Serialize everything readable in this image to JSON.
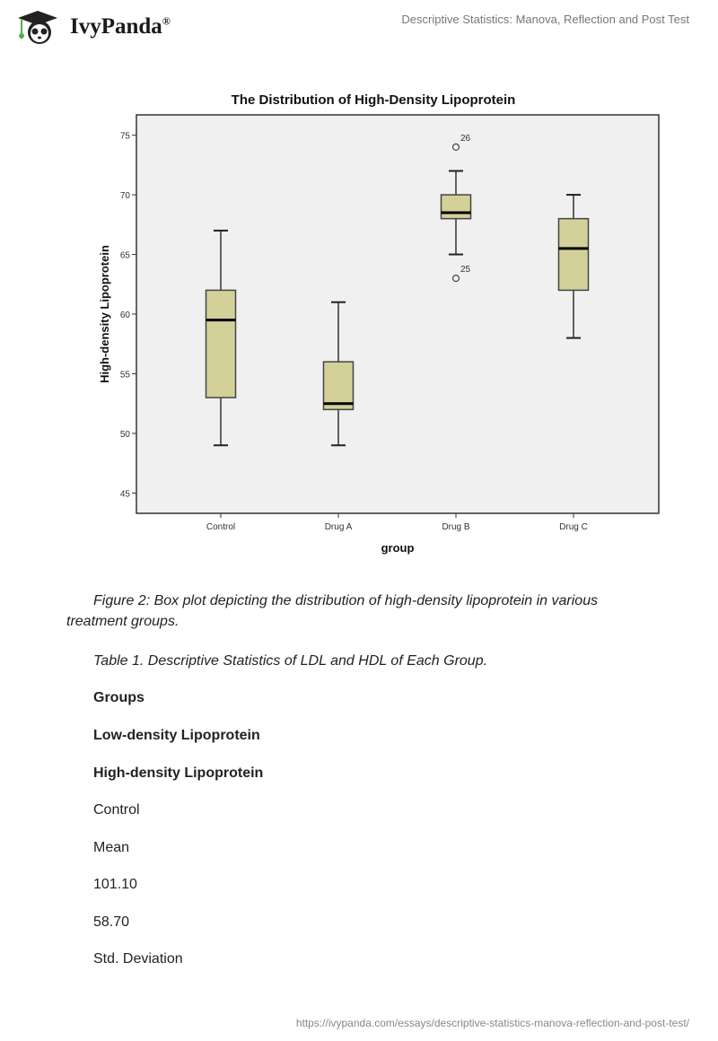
{
  "header": {
    "brand": "IvyPanda",
    "brand_mark": "®",
    "doc_title": "Descriptive Statistics: Manova, Reflection and Post Test"
  },
  "chart_data": {
    "type": "box",
    "title": "The Distribution of High-Density Lipoprotein",
    "xlabel": "group",
    "ylabel": "High-density Lipoprotein",
    "ylim": [
      43.3,
      76.7
    ],
    "yticks": [
      45,
      50,
      55,
      60,
      65,
      70,
      75
    ],
    "categories": [
      "Control",
      "Drug A",
      "Drug B",
      "Drug C"
    ],
    "boxes": [
      {
        "min": 49,
        "q1": 53,
        "median": 59.5,
        "q3": 62,
        "max": 67,
        "outliers": []
      },
      {
        "min": 49,
        "q1": 52,
        "median": 52.5,
        "q3": 56,
        "max": 61,
        "outliers": []
      },
      {
        "min": 65,
        "q1": 68,
        "median": 68.5,
        "q3": 70,
        "max": 72,
        "outliers": [
          {
            "value": 74,
            "label": "26"
          },
          {
            "value": 63,
            "label": "25"
          }
        ]
      },
      {
        "min": 58,
        "q1": 62,
        "median": 65.5,
        "q3": 68,
        "max": 70,
        "outliers": []
      }
    ],
    "box_color": "#d4d09a",
    "plot_bg": "#f0f0f0",
    "grid": false
  },
  "body": {
    "figure_caption_1": "Figure 2: Box plot depicting the distribution of high-density lipoprotein in various",
    "figure_caption_2": "treatment groups.",
    "table_caption": "Table 1. Descriptive Statistics of LDL and HDL of Each Group.",
    "lines": [
      "Groups",
      "Low-density Lipoprotein",
      "High-density Lipoprotein",
      "Control",
      "Mean",
      "101.10",
      "58.70",
      "Std. Deviation"
    ]
  },
  "footer": {
    "url": "https://ivypanda.com/essays/descriptive-statistics-manova-reflection-and-post-test/"
  }
}
